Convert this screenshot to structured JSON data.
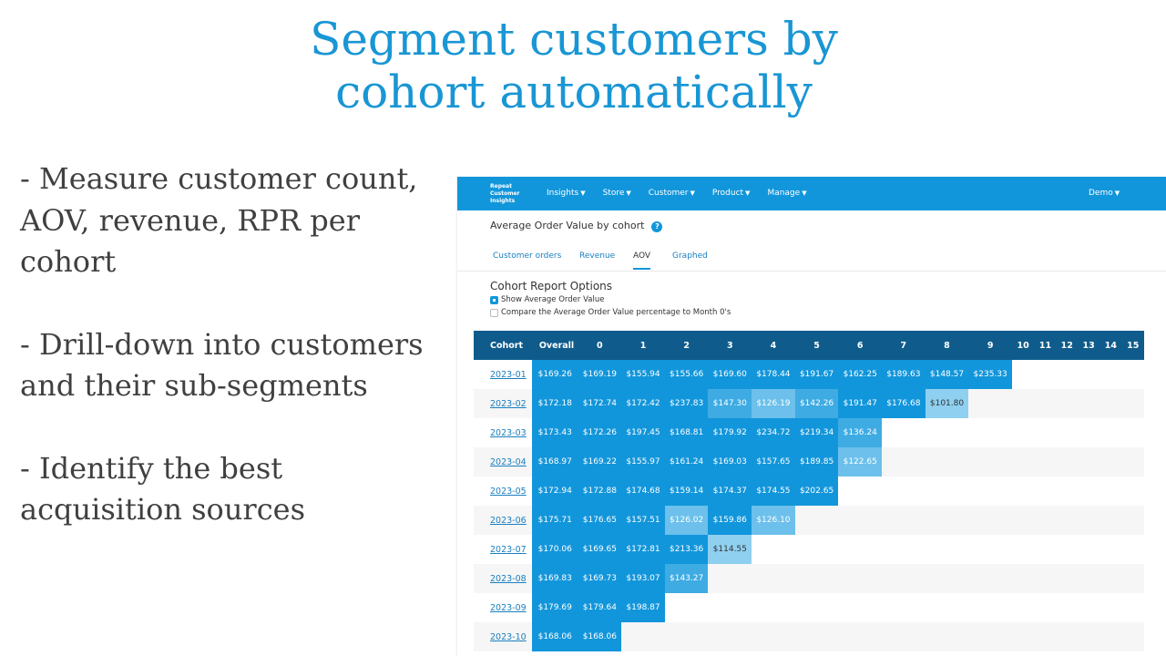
{
  "slide": {
    "title_line1": "Segment customers by",
    "title_line2": "cohort automatically",
    "bullets": [
      "- Measure customer count, AOV, revenue, RPR per cohort",
      "- Drill-down into customers and their sub-segments",
      "- Identify the best acquisition sources"
    ]
  },
  "app": {
    "brand": [
      "Repeat",
      "Customer",
      "Insights"
    ],
    "nav": [
      "Insights",
      "Store",
      "Customer",
      "Product",
      "Manage"
    ],
    "nav_user": "Demo",
    "report_title": "Average Order Value by cohort",
    "help_glyph": "?",
    "tabs": [
      "Customer orders",
      "Revenue",
      "AOV",
      "Graphed"
    ],
    "active_tab": "AOV",
    "options_title": "Cohort Report Options",
    "option_show": "Show Average Order Value",
    "option_compare": "Compare the Average Order Value percentage to Month 0's",
    "accent_color": "#1296db",
    "header_color": "#0f5c8c"
  },
  "table": {
    "columns": [
      "Cohort",
      "Overall",
      "0",
      "1",
      "2",
      "3",
      "4",
      "5",
      "6",
      "7",
      "8",
      "9",
      "10",
      "11",
      "12",
      "13",
      "14",
      "15"
    ],
    "rows": [
      {
        "cohort": "2023-01",
        "overall": "$169.26",
        "values": [
          "$169.19",
          "$155.94",
          "$155.66",
          "$169.60",
          "$178.44",
          "$191.67",
          "$162.25",
          "$189.63",
          "$148.57",
          "$235.33"
        ],
        "shades": [
          "dark",
          "dark",
          "dark",
          "dark",
          "dark",
          "dark",
          "dark",
          "dark",
          "dark",
          "dark"
        ]
      },
      {
        "cohort": "2023-02",
        "overall": "$172.18",
        "values": [
          "$172.74",
          "$172.42",
          "$237.83",
          "$147.30",
          "$126.19",
          "$142.26",
          "$191.47",
          "$176.68",
          "$101.80"
        ],
        "shades": [
          "dark",
          "dark",
          "dark",
          "mid",
          "light",
          "mid",
          "dark",
          "dark",
          "pale"
        ]
      },
      {
        "cohort": "2023-03",
        "overall": "$173.43",
        "values": [
          "$172.26",
          "$197.45",
          "$168.81",
          "$179.92",
          "$234.72",
          "$219.34",
          "$136.24"
        ],
        "shades": [
          "dark",
          "dark",
          "dark",
          "dark",
          "dark",
          "dark",
          "mid"
        ]
      },
      {
        "cohort": "2023-04",
        "overall": "$168.97",
        "values": [
          "$169.22",
          "$155.97",
          "$161.24",
          "$169.03",
          "$157.65",
          "$189.85",
          "$122.65"
        ],
        "shades": [
          "dark",
          "dark",
          "dark",
          "dark",
          "dark",
          "dark",
          "light"
        ]
      },
      {
        "cohort": "2023-05",
        "overall": "$172.94",
        "values": [
          "$172.88",
          "$174.68",
          "$159.14",
          "$174.37",
          "$174.55",
          "$202.65"
        ],
        "shades": [
          "dark",
          "dark",
          "dark",
          "dark",
          "dark",
          "dark"
        ]
      },
      {
        "cohort": "2023-06",
        "overall": "$175.71",
        "values": [
          "$176.65",
          "$157.51",
          "$126.02",
          "$159.86",
          "$126.10"
        ],
        "shades": [
          "dark",
          "dark",
          "light",
          "dark",
          "light"
        ]
      },
      {
        "cohort": "2023-07",
        "overall": "$170.06",
        "values": [
          "$169.65",
          "$172.81",
          "$213.36",
          "$114.55"
        ],
        "shades": [
          "dark",
          "dark",
          "dark",
          "pale"
        ]
      },
      {
        "cohort": "2023-08",
        "overall": "$169.83",
        "values": [
          "$169.73",
          "$193.07",
          "$143.27"
        ],
        "shades": [
          "dark",
          "dark",
          "mid"
        ]
      },
      {
        "cohort": "2023-09",
        "overall": "$179.69",
        "values": [
          "$179.64",
          "$198.87"
        ],
        "shades": [
          "dark",
          "dark"
        ]
      },
      {
        "cohort": "2023-10",
        "overall": "$168.06",
        "values": [
          "$168.06"
        ],
        "shades": [
          "dark"
        ]
      }
    ]
  }
}
